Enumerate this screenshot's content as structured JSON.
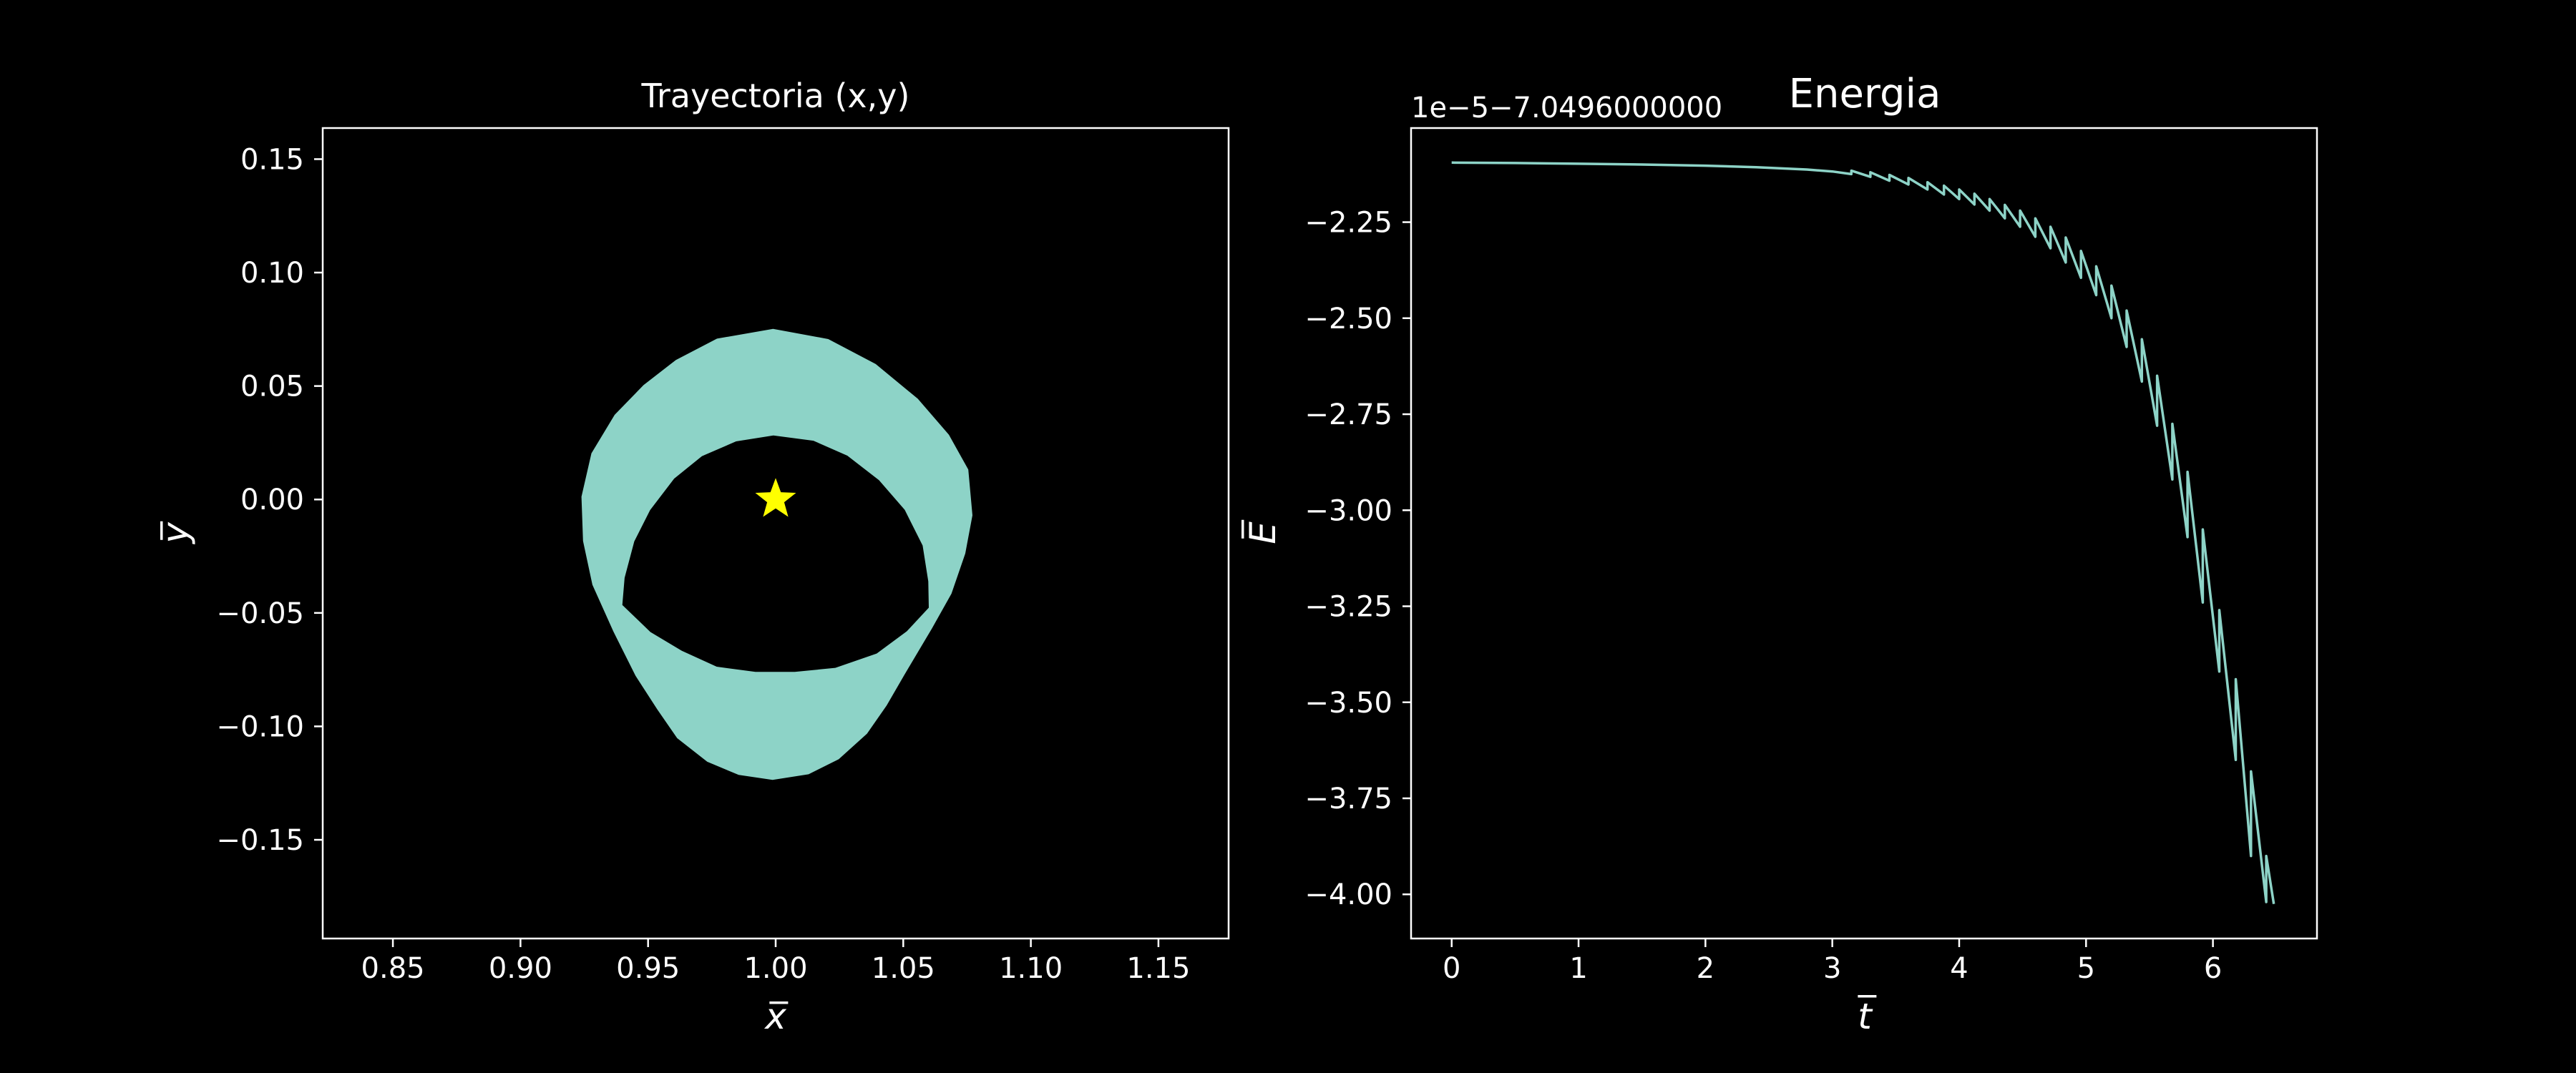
{
  "theme": {
    "background": "#000000",
    "foreground": "#ffffff",
    "series_color": "#8dd3c7",
    "star_color": "#ffff00"
  },
  "chart_data": [
    {
      "type": "scatter",
      "title": "Trayectoria (x,y)",
      "xlabel": "x̅",
      "ylabel": "y̅",
      "xlim": [
        0.8225,
        1.1775
      ],
      "ylim": [
        -0.1935,
        0.1637
      ],
      "xticks": [
        "0.85",
        "0.90",
        "0.95",
        "1.00",
        "1.05",
        "1.10",
        "1.15"
      ],
      "xtick_values": [
        0.85,
        0.9,
        0.95,
        1.0,
        1.05,
        1.1,
        1.15
      ],
      "yticks": [
        "0.15",
        "0.10",
        "0.05",
        "0.00",
        "−0.05",
        "−0.10",
        "−0.15"
      ],
      "ytick_values": [
        0.15,
        0.1,
        0.05,
        0.0,
        -0.05,
        -0.1,
        -0.15
      ],
      "grid": false,
      "series": [
        {
          "marker": "star",
          "points": [
            [
              1.0,
              0.0
            ]
          ]
        },
        {
          "fill": "band",
          "outer": [
            [
              0.999,
              0.0752
            ],
            [
              1.0206,
              0.0707
            ],
            [
              1.0392,
              0.0597
            ],
            [
              1.0557,
              0.0444
            ],
            [
              1.0679,
              0.0285
            ],
            [
              1.0755,
              0.0132
            ],
            [
              1.0771,
              -0.007
            ],
            [
              1.0743,
              -0.0238
            ],
            [
              1.0689,
              -0.0415
            ],
            [
              1.0612,
              -0.0569
            ],
            [
              1.0504,
              -0.0774
            ],
            [
              1.0435,
              -0.0908
            ],
            [
              1.0358,
              -0.1032
            ],
            [
              1.0247,
              -0.1145
            ],
            [
              1.0129,
              -0.1211
            ],
            [
              0.9988,
              -0.1236
            ],
            [
              0.9855,
              -0.1214
            ],
            [
              0.9732,
              -0.1156
            ],
            [
              0.9614,
              -0.1052
            ],
            [
              0.9536,
              -0.0925
            ],
            [
              0.9451,
              -0.0777
            ],
            [
              0.9364,
              -0.0582
            ],
            [
              0.9282,
              -0.0376
            ],
            [
              0.9245,
              -0.0183
            ],
            [
              0.9239,
              0.0012
            ],
            [
              0.9278,
              0.0203
            ],
            [
              0.9369,
              0.0373
            ],
            [
              0.9482,
              0.0504
            ],
            [
              0.9609,
              0.0615
            ],
            [
              0.977,
              0.0709
            ]
          ],
          "inner": [
            [
              0.9991,
              0.0282
            ],
            [
              1.0148,
              0.0259
            ],
            [
              1.0281,
              0.0193
            ],
            [
              1.0405,
              0.0085
            ],
            [
              1.0506,
              -0.0046
            ],
            [
              1.0576,
              -0.0203
            ],
            [
              1.0598,
              -0.0361
            ],
            [
              1.06,
              -0.0477
            ],
            [
              1.0514,
              -0.0581
            ],
            [
              1.0396,
              -0.0679
            ],
            [
              1.0234,
              -0.0742
            ],
            [
              1.0075,
              -0.076
            ],
            [
              0.9921,
              -0.076
            ],
            [
              0.9769,
              -0.0737
            ],
            [
              0.9632,
              -0.0667
            ],
            [
              0.9509,
              -0.0584
            ],
            [
              0.9399,
              -0.0465
            ],
            [
              0.9408,
              -0.0345
            ],
            [
              0.9446,
              -0.0185
            ],
            [
              0.9508,
              -0.0047
            ],
            [
              0.9602,
              0.0092
            ],
            [
              0.9711,
              0.0191
            ],
            [
              0.9845,
              0.0256
            ]
          ]
        }
      ]
    },
    {
      "type": "line",
      "title": "Energia",
      "offset_text": "1e−5−7.0496000000",
      "xlabel": "t̅",
      "ylabel": "E̅",
      "xlim": [
        -0.32,
        6.82
      ],
      "ylim": [
        -4.115,
        -2.005
      ],
      "xticks": [
        "0",
        "1",
        "2",
        "3",
        "4",
        "5",
        "6"
      ],
      "xtick_values": [
        0,
        1,
        2,
        3,
        4,
        5,
        6
      ],
      "yticks": [
        "−2.25",
        "−2.50",
        "−2.75",
        "−3.00",
        "−3.25",
        "−3.50",
        "−3.75",
        "−4.00"
      ],
      "ytick_values": [
        -2.25,
        -2.5,
        -2.75,
        -3.0,
        -3.25,
        -3.5,
        -3.75,
        -4.0
      ],
      "grid": false,
      "series": [
        {
          "x": [
            0.0,
            0.5,
            1.0,
            1.5,
            2.0,
            2.4,
            2.8,
            3.0,
            3.15,
            3.15,
            3.3,
            3.3,
            3.45,
            3.45,
            3.6,
            3.6,
            3.75,
            3.75,
            3.88,
            3.88,
            4.0,
            4.0,
            4.12,
            4.12,
            4.24,
            4.24,
            4.36,
            4.36,
            4.48,
            4.48,
            4.6,
            4.6,
            4.72,
            4.72,
            4.84,
            4.84,
            4.96,
            4.96,
            5.08,
            5.08,
            5.2,
            5.2,
            5.32,
            5.32,
            5.44,
            5.44,
            5.56,
            5.56,
            5.68,
            5.68,
            5.8,
            5.8,
            5.92,
            5.92,
            6.05,
            6.05,
            6.18,
            6.18,
            6.3,
            6.3,
            6.42,
            6.42,
            6.48
          ],
          "y": [
            -2.095,
            -2.096,
            -2.098,
            -2.1,
            -2.103,
            -2.107,
            -2.113,
            -2.118,
            -2.125,
            -2.116,
            -2.132,
            -2.12,
            -2.142,
            -2.127,
            -2.152,
            -2.135,
            -2.165,
            -2.146,
            -2.178,
            -2.155,
            -2.19,
            -2.165,
            -2.204,
            -2.176,
            -2.22,
            -2.19,
            -2.24,
            -2.205,
            -2.262,
            -2.22,
            -2.288,
            -2.24,
            -2.318,
            -2.262,
            -2.355,
            -2.29,
            -2.395,
            -2.325,
            -2.44,
            -2.365,
            -2.5,
            -2.415,
            -2.575,
            -2.48,
            -2.665,
            -2.555,
            -2.78,
            -2.65,
            -2.92,
            -2.775,
            -3.07,
            -2.9,
            -3.24,
            -3.05,
            -3.42,
            -3.26,
            -3.65,
            -3.44,
            -3.9,
            -3.68,
            -4.02,
            -3.9,
            -4.025
          ]
        }
      ]
    }
  ]
}
